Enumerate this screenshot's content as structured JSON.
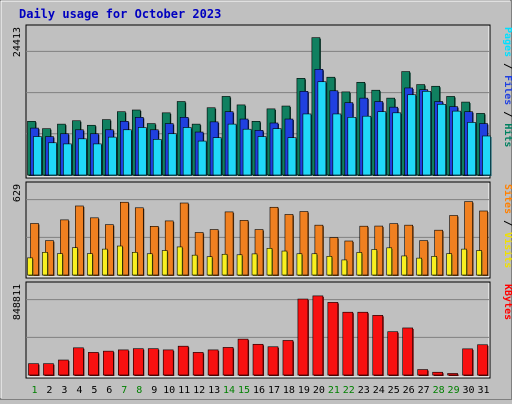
{
  "chart_data": {
    "type": "bar",
    "title": "Daily usage for October 2023",
    "categories": [
      "1",
      "2",
      "3",
      "4",
      "5",
      "6",
      "7",
      "8",
      "9",
      "10",
      "11",
      "12",
      "13",
      "14",
      "15",
      "16",
      "17",
      "18",
      "19",
      "20",
      "21",
      "22",
      "23",
      "24",
      "25",
      "26",
      "27",
      "28",
      "29",
      "30",
      "31"
    ],
    "weekend_days": [
      "1",
      "7",
      "8",
      "14",
      "15",
      "21",
      "22",
      "28",
      "29"
    ],
    "panels": [
      {
        "id": "pages-files-hits",
        "ymax_label": "24413",
        "ymax": 24413,
        "ylabel_parts": [
          {
            "text": "Pages",
            "color": "#00e0ff"
          },
          {
            "text": " / ",
            "color": "#000000"
          },
          {
            "text": "Files",
            "color": "#2040e0"
          },
          {
            "text": " / ",
            "color": "#000000"
          },
          {
            "text": "Hits",
            "color": "#008060"
          }
        ],
        "series": [
          {
            "name": "Hits",
            "color": "#108060",
            "values": [
              9500,
              8200,
              9000,
              9600,
              8800,
              9800,
              11200,
              11500,
              9100,
              11000,
              13000,
              9000,
              11900,
              13900,
              12400,
              9500,
              11700,
              12200,
              17100,
              24300,
              17300,
              14700,
              16400,
              15000,
              13600,
              18300,
              16000,
              15700,
              13900,
              12900,
              10900
            ]
          },
          {
            "name": "Files",
            "color": "#2040e0",
            "values": [
              8300,
              6800,
              7300,
              8000,
              7300,
              8000,
              9500,
              10200,
              8000,
              9100,
              10200,
              7600,
              9400,
              11200,
              9900,
              7900,
              9200,
              9900,
              14800,
              18700,
              14900,
              12800,
              13600,
              13000,
              12000,
              15400,
              15100,
              13000,
              12100,
              11200,
              9100
            ]
          },
          {
            "name": "Pages",
            "color": "#20d8f8",
            "values": [
              6800,
              5700,
              5500,
              6400,
              5500,
              6700,
              8000,
              8400,
              6300,
              7300,
              8400,
              6000,
              6600,
              9000,
              8100,
              6800,
              8200,
              6600,
              10800,
              16500,
              10800,
              10200,
              10400,
              11200,
              11000,
              14200,
              14800,
              12500,
              11300,
              9300,
              6900
            ]
          }
        ]
      },
      {
        "id": "visits-sites",
        "ymax_label": "629",
        "ymax": 629,
        "ylabel_parts": [
          {
            "text": "Sites",
            "color": "#ff8000"
          },
          {
            "text": " / ",
            "color": "#000000"
          },
          {
            "text": "Visits",
            "color": "#f0e000"
          }
        ],
        "series": [
          {
            "name": "Visits",
            "color": "#f08020",
            "values": [
              400,
              267,
              428,
              536,
              444,
              391,
              565,
              522,
              378,
              420,
              559,
              330,
              353,
              490,
              424,
              353,
              526,
              470,
              493,
              387,
              291,
              264,
              379,
              380,
              399,
              387,
              267,
              348,
              462,
              570,
              497
            ]
          },
          {
            "name": "Sites",
            "color": "#f8f020",
            "values": [
              133,
              176,
              166,
              212,
              166,
              201,
              225,
              176,
              165,
              190,
              218,
              154,
              142,
              161,
              157,
              164,
              207,
              186,
              165,
              165,
              145,
              117,
              175,
              198,
              211,
              148,
              131,
              145,
              166,
              201,
              190
            ]
          }
        ]
      },
      {
        "id": "kbytes",
        "ymax_label": "848811",
        "ymax": 848811,
        "ylabel_parts": [
          {
            "text": "KBytes",
            "color": "#ff0000"
          }
        ],
        "series": [
          {
            "name": "KBytes",
            "color": "#f81010",
            "values": [
              119000,
              119000,
              157000,
              285000,
              237000,
              250000,
              263000,
              276000,
              276000,
              263000,
              302000,
              237000,
              263000,
              289000,
              376000,
              322000,
              296000,
              362000,
              796000,
              829000,
              761000,
              658000,
              658000,
              625000,
              454000,
              493000,
              57000,
              29000,
              16000,
              274000,
              317000
            ]
          }
        ]
      }
    ]
  }
}
